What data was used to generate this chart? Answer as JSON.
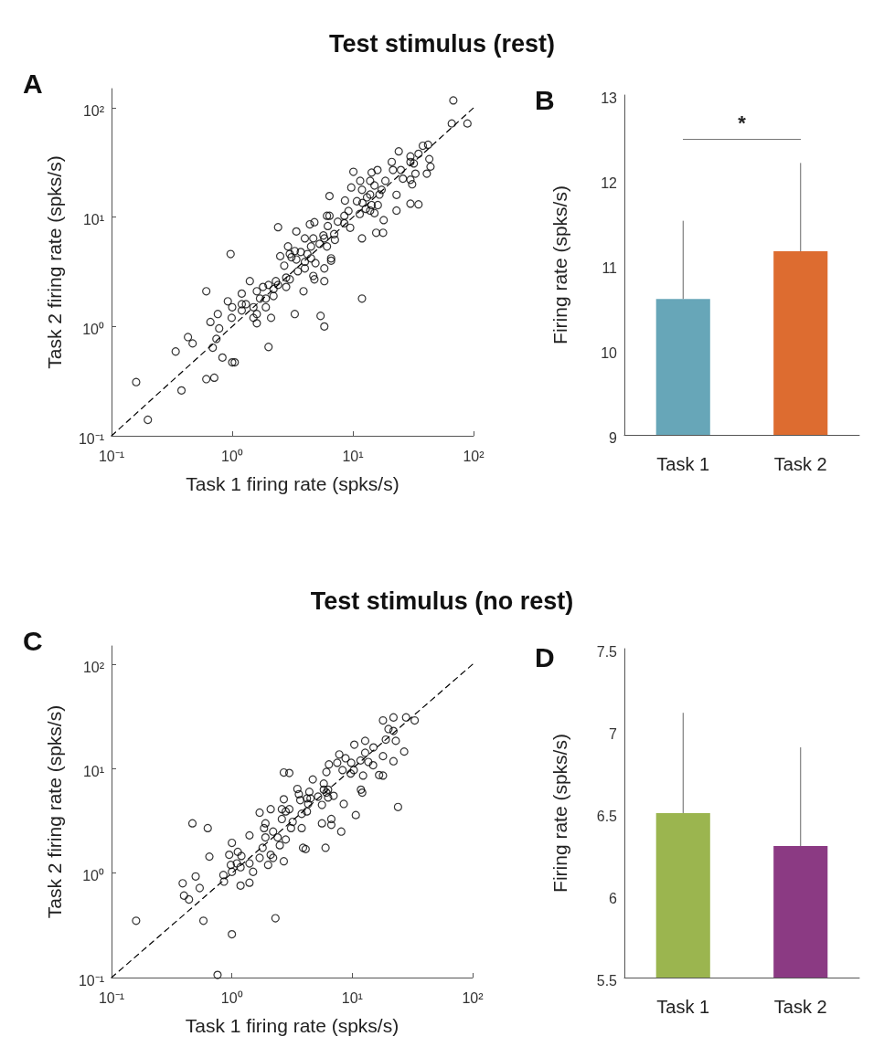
{
  "chart_data": [
    {
      "type": "scatter",
      "title": "Test stimulus (rest)",
      "xlabel": "Task 1 firing rate (spks/s)",
      "ylabel": "Task 2 firing rate (spks/s)",
      "annotations": [
        "A"
      ],
      "log": "xy",
      "xlim": [
        0.1,
        100
      ],
      "ylim": [
        0.1,
        150
      ],
      "xticks": [
        {
          "value": 0.1,
          "label": "10⁻¹"
        },
        {
          "value": 1,
          "label": "10⁰"
        },
        {
          "value": 10,
          "label": "10¹"
        },
        {
          "value": 100,
          "label": "10²"
        }
      ],
      "yticks": [
        {
          "value": 0.1,
          "label": "10⁻¹"
        },
        {
          "value": 1,
          "label": "10⁰"
        },
        {
          "value": 10,
          "label": "10¹"
        },
        {
          "value": 100,
          "label": "10²"
        }
      ],
      "series": [
        {
          "color": "#000000",
          "marker": "circle",
          "x": [
            68,
            66,
            89,
            38,
            42,
            35,
            24,
            30,
            43,
            44,
            41,
            33,
            21,
            25,
            21.5,
            26,
            30,
            31,
            30,
            35,
            23,
            23,
            18.6,
            16,
            14.3,
            10.1,
            11.5,
            13.9,
            15.1,
            9.7,
            11.9,
            17.3,
            16.6,
            13.9,
            8.6,
            10.8,
            12,
            14.3,
            12.8,
            16.1,
            13.9,
            9.2,
            11.4,
            15.1,
            18,
            15.6,
            17.8,
            11.9,
            9.5,
            8.5,
            7.5,
            6.1,
            6.4,
            6.4,
            7.0,
            5.7,
            6.2,
            7.1,
            6.1,
            5.8,
            4.8,
            4.4,
            3.4,
            2.4,
            4.0,
            4.7,
            4.5,
            5.3,
            2.9,
            3.0,
            3.3,
            3.7,
            4.2,
            4.5,
            2.5,
            3.1,
            3.4,
            4.0,
            4.9,
            6.6,
            6.6,
            2.7,
            3.5,
            4.0,
            5.8,
            4.7,
            4.8,
            5.8,
            2.8,
            3.0,
            2.3,
            2.4,
            2.8,
            2.2,
            3.9,
            2.0,
            1.8,
            1.6,
            1.7,
            2.2,
            1.9,
            1.9,
            1.4,
            1.2,
            1.2,
            1.3,
            1.5,
            1.6,
            1.6,
            2.1,
            1.5,
            1.2,
            0.92,
            1.0,
            0.99,
            0.61,
            0.76,
            0.66,
            0.78,
            0.97,
            3.3,
            5.4,
            5.8,
            11.9,
            2.0,
            0.74,
            0.69,
            0.83,
            1.0,
            1.05,
            0.43,
            0.47,
            0.34,
            0.61,
            0.71,
            0.38,
            0.16,
            0.2,
            13.1,
            8.5,
            30,
            32
          ],
          "values": [
            117,
            72,
            72,
            45,
            46,
            38,
            40,
            36,
            34,
            29,
            25,
            25,
            32,
            27,
            27,
            22.5,
            22,
            20,
            13.3,
            13.1,
            16,
            11.5,
            21.5,
            27,
            25.6,
            26,
            21.5,
            21.5,
            19.5,
            18.7,
            17.8,
            17.8,
            16.1,
            16.1,
            14.2,
            14.0,
            13.5,
            12.9,
            11.9,
            12.9,
            11.5,
            11.4,
            10.7,
            10.9,
            9.4,
            7.2,
            7.2,
            6.4,
            8.0,
            8.8,
            9.1,
            10.3,
            10.3,
            15.6,
            7.0,
            6.8,
            8.3,
            6.2,
            5.4,
            6.4,
            9.0,
            8.6,
            7.4,
            8.1,
            6.4,
            6.4,
            5.4,
            5.7,
            5.4,
            4.6,
            4.9,
            4.8,
            4.6,
            4.2,
            4.4,
            4.3,
            4.1,
            3.9,
            3.8,
            4.2,
            4.0,
            3.6,
            3.2,
            3.4,
            3.4,
            2.9,
            2.7,
            2.6,
            2.8,
            2.7,
            2.6,
            2.4,
            2.3,
            2.2,
            2.1,
            2.4,
            2.3,
            2.1,
            1.8,
            1.9,
            1.8,
            1.5,
            2.6,
            2.0,
            1.6,
            1.6,
            1.5,
            1.3,
            1.07,
            1.2,
            1.2,
            1.4,
            1.7,
            1.5,
            1.2,
            2.1,
            1.3,
            1.1,
            0.96,
            4.6,
            1.3,
            1.25,
            1.0,
            1.8,
            0.65,
            0.77,
            0.64,
            0.52,
            0.47,
            0.47,
            0.8,
            0.7,
            0.59,
            0.33,
            0.34,
            0.26,
            0.31,
            0.14,
            15.2,
            10.3,
            32,
            31
          ]
        },
        {
          "type": "line",
          "color": "#000000",
          "line_style": "dashed",
          "x": [
            0.1,
            100
          ],
          "values": [
            0.1,
            100
          ]
        }
      ]
    },
    {
      "type": "bar",
      "ylabel": "Firing rate (spks/s)",
      "annotations": [
        "B",
        "*"
      ],
      "categories": [
        "Task 1",
        "Task 2"
      ],
      "values": [
        10.6,
        11.16
      ],
      "colors": [
        "#67a6b8",
        "#dd6c30"
      ],
      "errors": [
        [
          10.6,
          11.52
        ],
        [
          11.16,
          12.2
        ]
      ],
      "ylim": [
        9,
        13
      ],
      "yticks": [
        9,
        10,
        11,
        12,
        13
      ]
    },
    {
      "type": "scatter",
      "title": "Test stimulus (no rest)",
      "xlabel": "Task 1 firing rate (spks/s)",
      "ylabel": "Task 2 firing rate (spks/s)",
      "annotations": [
        "C"
      ],
      "log": "xy",
      "xlim": [
        0.1,
        100
      ],
      "ylim": [
        0.1,
        150
      ],
      "xticks": [
        {
          "value": 0.1,
          "label": "10⁻¹"
        },
        {
          "value": 1,
          "label": "10⁰"
        },
        {
          "value": 10,
          "label": "10¹"
        },
        {
          "value": 100,
          "label": "10²"
        }
      ],
      "yticks": [
        {
          "value": 0.1,
          "label": "10⁻¹"
        },
        {
          "value": 1,
          "label": "10⁰"
        },
        {
          "value": 10,
          "label": "10¹"
        },
        {
          "value": 100,
          "label": "10²"
        }
      ],
      "series": [
        {
          "color": "#000000",
          "marker": "circle",
          "x": [
            18,
            22,
            28,
            33,
            20,
            22,
            19,
            23,
            27,
            18,
            22,
            15,
            12.8,
            10.4,
            12.8,
            11.7,
            13.6,
            14.9,
            12.3,
            16.7,
            18,
            7.8,
            8.8,
            7.5,
            6.4,
            9.8,
            8.3,
            10.3,
            9.7,
            6.1,
            4.7,
            5.8,
            5.8,
            6.3,
            6.3,
            7.0,
            5.6,
            8.5,
            11.8,
            12.1,
            10.7,
            24,
            2.7,
            3.0,
            3.5,
            3.6,
            3.7,
            4.4,
            4.5,
            4.3,
            4.2,
            3.8,
            2.7,
            2.6,
            3.0,
            2.8,
            3.2,
            2.6,
            3.1,
            3.8,
            5.6,
            6.7,
            6.7,
            8.1,
            3.9,
            4.1,
            6.0,
            2.8,
            2.5,
            2.7,
            2.1,
            1.7,
            1.9,
            1.85,
            2.2,
            2.4,
            1.9,
            1.8,
            2.1,
            2.2,
            2.0,
            1.7,
            1.4,
            1.4,
            1.5,
            1.4,
            1.18,
            1.18,
            1.2,
            1.12,
            1.0,
            0.95,
            0.98,
            1.0,
            1.1,
            0.85,
            0.86,
            0.65,
            0.63,
            0.47,
            0.5,
            0.39,
            0.54,
            0.4,
            0.44,
            0.58,
            0.16,
            1.0,
            2.3,
            0.76,
            4.2,
            5.2,
            6.1
          ],
          "values": [
            29,
            31,
            31,
            29,
            24,
            23,
            19,
            18.5,
            14.6,
            13.2,
            11.8,
            16,
            18.5,
            17,
            14.2,
            12.0,
            11.6,
            10.8,
            8.6,
            8.7,
            8.6,
            13.7,
            12.6,
            11.4,
            11.0,
            11.4,
            9.7,
            9.7,
            9.0,
            9.3,
            7.9,
            7.2,
            6.3,
            6.3,
            5.3,
            5.5,
            4.5,
            4.6,
            6.3,
            5.9,
            3.6,
            4.3,
            9.2,
            9.1,
            6.4,
            5.7,
            5.0,
            6.0,
            5.2,
            4.6,
            3.9,
            3.7,
            5.1,
            4.1,
            4.1,
            3.9,
            3.1,
            3.3,
            2.7,
            2.7,
            3.0,
            3.3,
            2.9,
            2.5,
            1.75,
            1.7,
            1.75,
            2.1,
            1.85,
            1.3,
            4.1,
            3.8,
            3.0,
            2.7,
            2.5,
            2.2,
            2.2,
            1.75,
            1.5,
            1.4,
            1.2,
            1.4,
            2.3,
            1.24,
            1.03,
            0.81,
            0.76,
            1.14,
            1.46,
            1.6,
            1.95,
            1.5,
            1.2,
            1.03,
            1.24,
            0.96,
            0.83,
            1.44,
            2.7,
            3.0,
            0.93,
            0.8,
            0.72,
            0.61,
            0.56,
            0.35,
            0.35,
            0.26,
            0.37,
            0.106,
            5.2,
            5.4,
            5.9
          ]
        },
        {
          "type": "line",
          "color": "#000000",
          "line_style": "dashed",
          "x": [
            0.1,
            100
          ],
          "values": [
            0.1,
            100
          ]
        }
      ]
    },
    {
      "type": "bar",
      "ylabel": "Firing rate (spks/s)",
      "annotations": [
        "D"
      ],
      "categories": [
        "Task 1",
        "Task 2"
      ],
      "values": [
        6.5,
        6.3
      ],
      "colors": [
        "#9bb54f",
        "#8b3a83"
      ],
      "errors": [
        [
          6.5,
          7.11
        ],
        [
          6.3,
          6.9
        ]
      ],
      "ylim": [
        5.5,
        7.5
      ],
      "yticks": [
        5.5,
        6,
        6.5,
        7,
        7.5
      ]
    }
  ]
}
